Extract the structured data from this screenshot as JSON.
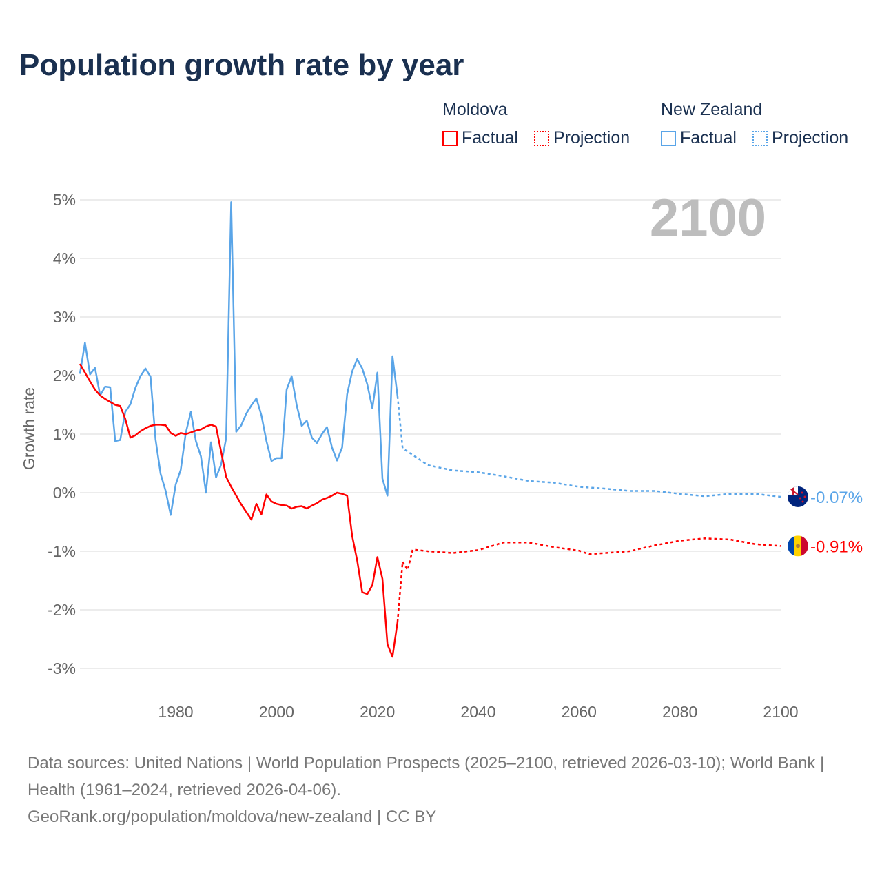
{
  "title": "Population growth rate by year",
  "legend": {
    "groups": [
      {
        "name": "Moldova",
        "factual": "Factual",
        "projection": "Projection",
        "color": "#ff0000"
      },
      {
        "name": "New Zealand",
        "factual": "Factual",
        "projection": "Projection",
        "color": "#5aa5e8"
      }
    ]
  },
  "year_overlay": "2100",
  "footer": {
    "line1": "Data sources: United Nations | World Population Prospects (2025–2100, retrieved 2026-03-10); World Bank | Health (1961–2024, retrieved 2026-04-06).",
    "line2": "GeoRank.org/population/moldova/new-zealand | CC BY"
  },
  "chart_data": {
    "type": "line",
    "title": "Population growth rate by year",
    "xlabel": "",
    "ylabel": "Growth rate",
    "xlim": [
      1961,
      2100
    ],
    "ylim": [
      -3,
      5
    ],
    "x_ticks": [
      1980,
      2000,
      2020,
      2040,
      2060,
      2080,
      2100
    ],
    "y_ticks": [
      {
        "v": 5,
        "label": "5%"
      },
      {
        "v": 4,
        "label": "4%"
      },
      {
        "v": 3,
        "label": "3%"
      },
      {
        "v": 2,
        "label": "2%"
      },
      {
        "v": 1,
        "label": "1%"
      },
      {
        "v": 0,
        "label": "0%"
      },
      {
        "v": -1,
        "label": "-1%"
      },
      {
        "v": -2,
        "label": "-2%"
      },
      {
        "v": -3,
        "label": "-3%"
      }
    ],
    "grid": true,
    "legend_position": "top-right",
    "series": [
      {
        "name": "New Zealand Factual",
        "color": "#5aa5e8",
        "dashed": false,
        "start_year": 1961,
        "values": [
          2.03,
          2.56,
          2.02,
          2.13,
          1.66,
          1.81,
          1.8,
          0.88,
          0.9,
          1.38,
          1.51,
          1.79,
          1.99,
          2.12,
          1.98,
          0.91,
          0.32,
          0.03,
          -0.38,
          0.14,
          0.39,
          1.02,
          1.38,
          0.88,
          0.62,
          0.0,
          0.86,
          0.26,
          0.48,
          0.93,
          4.96,
          1.04,
          1.15,
          1.35,
          1.49,
          1.61,
          1.32,
          0.88,
          0.54,
          0.59,
          0.59,
          1.76,
          1.99,
          1.49,
          1.14,
          1.23,
          0.94,
          0.85,
          1.0,
          1.12,
          0.77,
          0.55,
          0.77,
          1.68,
          2.07,
          2.28,
          2.12,
          1.85,
          1.44,
          2.05,
          0.24,
          -0.05,
          2.33,
          1.65
        ]
      },
      {
        "name": "New Zealand Projection",
        "color": "#5aa5e8",
        "dashed": true,
        "points": [
          [
            2024,
            1.65
          ],
          [
            2025,
            0.76
          ],
          [
            2030,
            0.47
          ],
          [
            2035,
            0.38
          ],
          [
            2040,
            0.35
          ],
          [
            2045,
            0.28
          ],
          [
            2050,
            0.2
          ],
          [
            2055,
            0.17
          ],
          [
            2060,
            0.1
          ],
          [
            2065,
            0.07
          ],
          [
            2070,
            0.03
          ],
          [
            2075,
            0.03
          ],
          [
            2080,
            -0.02
          ],
          [
            2085,
            -0.06
          ],
          [
            2090,
            -0.02
          ],
          [
            2095,
            -0.02
          ],
          [
            2100,
            -0.07
          ]
        ]
      },
      {
        "name": "Moldova Factual",
        "color": "#ff0000",
        "dashed": false,
        "start_year": 1961,
        "values": [
          2.2,
          2.05,
          1.9,
          1.76,
          1.66,
          1.6,
          1.55,
          1.5,
          1.48,
          1.26,
          0.94,
          0.98,
          1.05,
          1.1,
          1.14,
          1.16,
          1.16,
          1.15,
          1.02,
          0.97,
          1.02,
          1.0,
          1.03,
          1.06,
          1.08,
          1.13,
          1.16,
          1.13,
          0.7,
          0.27,
          0.1,
          -0.05,
          -0.2,
          -0.33,
          -0.46,
          -0.19,
          -0.37,
          -0.03,
          -0.15,
          -0.19,
          -0.21,
          -0.22,
          -0.27,
          -0.24,
          -0.23,
          -0.27,
          -0.22,
          -0.18,
          -0.12,
          -0.09,
          -0.05,
          0.0,
          -0.02,
          -0.05,
          -0.74,
          -1.16,
          -1.7,
          -1.73,
          -1.58,
          -1.1,
          -1.47,
          -2.59,
          -2.8,
          -2.21
        ]
      },
      {
        "name": "Moldova Projection",
        "color": "#ff0000",
        "dashed": true,
        "points": [
          [
            2024,
            -2.21
          ],
          [
            2025,
            -1.18
          ],
          [
            2026,
            -1.32
          ],
          [
            2027,
            -0.97
          ],
          [
            2030,
            -1.0
          ],
          [
            2035,
            -1.03
          ],
          [
            2040,
            -0.98
          ],
          [
            2045,
            -0.85
          ],
          [
            2050,
            -0.85
          ],
          [
            2055,
            -0.93
          ],
          [
            2060,
            -0.99
          ],
          [
            2062,
            -1.05
          ],
          [
            2070,
            -1.0
          ],
          [
            2075,
            -0.9
          ],
          [
            2080,
            -0.82
          ],
          [
            2085,
            -0.78
          ],
          [
            2090,
            -0.8
          ],
          [
            2095,
            -0.88
          ],
          [
            2100,
            -0.91
          ]
        ]
      }
    ],
    "end_labels": [
      {
        "series": "New Zealand",
        "value": -0.07,
        "label": "-0.07%",
        "color": "#5aa5e8"
      },
      {
        "series": "Moldova",
        "value": -0.91,
        "label": "-0.91%",
        "color": "#ff0000"
      }
    ]
  }
}
